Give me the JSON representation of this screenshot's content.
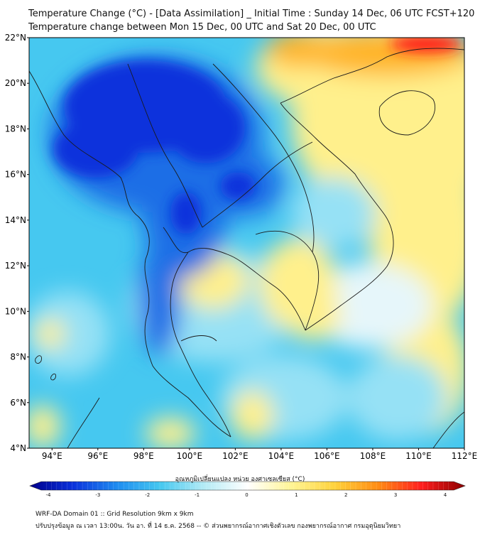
{
  "title": "Temperature Change (°C) - [Data Assimilation] _ Initial Time : Sunday 14 Dec, 06 UTC FCST+120",
  "subtitle": "Temperature change between Mon 15 Dec, 00 UTC and Sat 20 Dec, 00 UTC",
  "map": {
    "lat_range": [
      4,
      22
    ],
    "lon_range": [
      93,
      112
    ],
    "lat_ticks": [
      "22°N",
      "20°N",
      "18°N",
      "16°N",
      "14°N",
      "12°N",
      "10°N",
      "8°N",
      "6°N",
      "4°N"
    ],
    "lon_ticks": [
      "94°E",
      "96°E",
      "98°E",
      "100°E",
      "102°E",
      "104°E",
      "106°E",
      "108°E",
      "110°E",
      "112°E"
    ],
    "colors": {
      "base": "#46c8f0",
      "dark_blue": "#0a32dc",
      "blue": "#1e6ee6",
      "light_blue": "#96e1f5",
      "pale": "#e6f6fa",
      "yellow": "#fff08c",
      "orange": "#ffb428",
      "red": "#ff1e1e",
      "coast": "#1a1a1a"
    }
  },
  "colorbar": {
    "label": "อุณหภูมิเปลี่ยนแปลง หน่วย องศาเซลเซียส (°C)",
    "ticks": [
      "-4",
      "-3",
      "-2",
      "-1",
      "0",
      "1",
      "2",
      "3",
      "4"
    ],
    "stops": [
      "#00008c",
      "#0a32dc",
      "#1e8cf0",
      "#46c8f0",
      "#b4ebf5",
      "#ffffff",
      "#fff596",
      "#ffd23c",
      "#ff8c14",
      "#ff1e1e",
      "#8c0000"
    ]
  },
  "footer": {
    "line1": "WRF-DA Domain 01 :: Grid Resolution 9km x 9km",
    "line2": "ปรับปรุงข้อมูล ณ เวลา 13:00น. วัน อา. ที่ 14 ธ.ค. 2568 -- © ส่วนพยากรณ์อากาศเชิงตัวเลข กองพยากรณ์อากาศ กรมอุตุนิยมวิทยา"
  }
}
